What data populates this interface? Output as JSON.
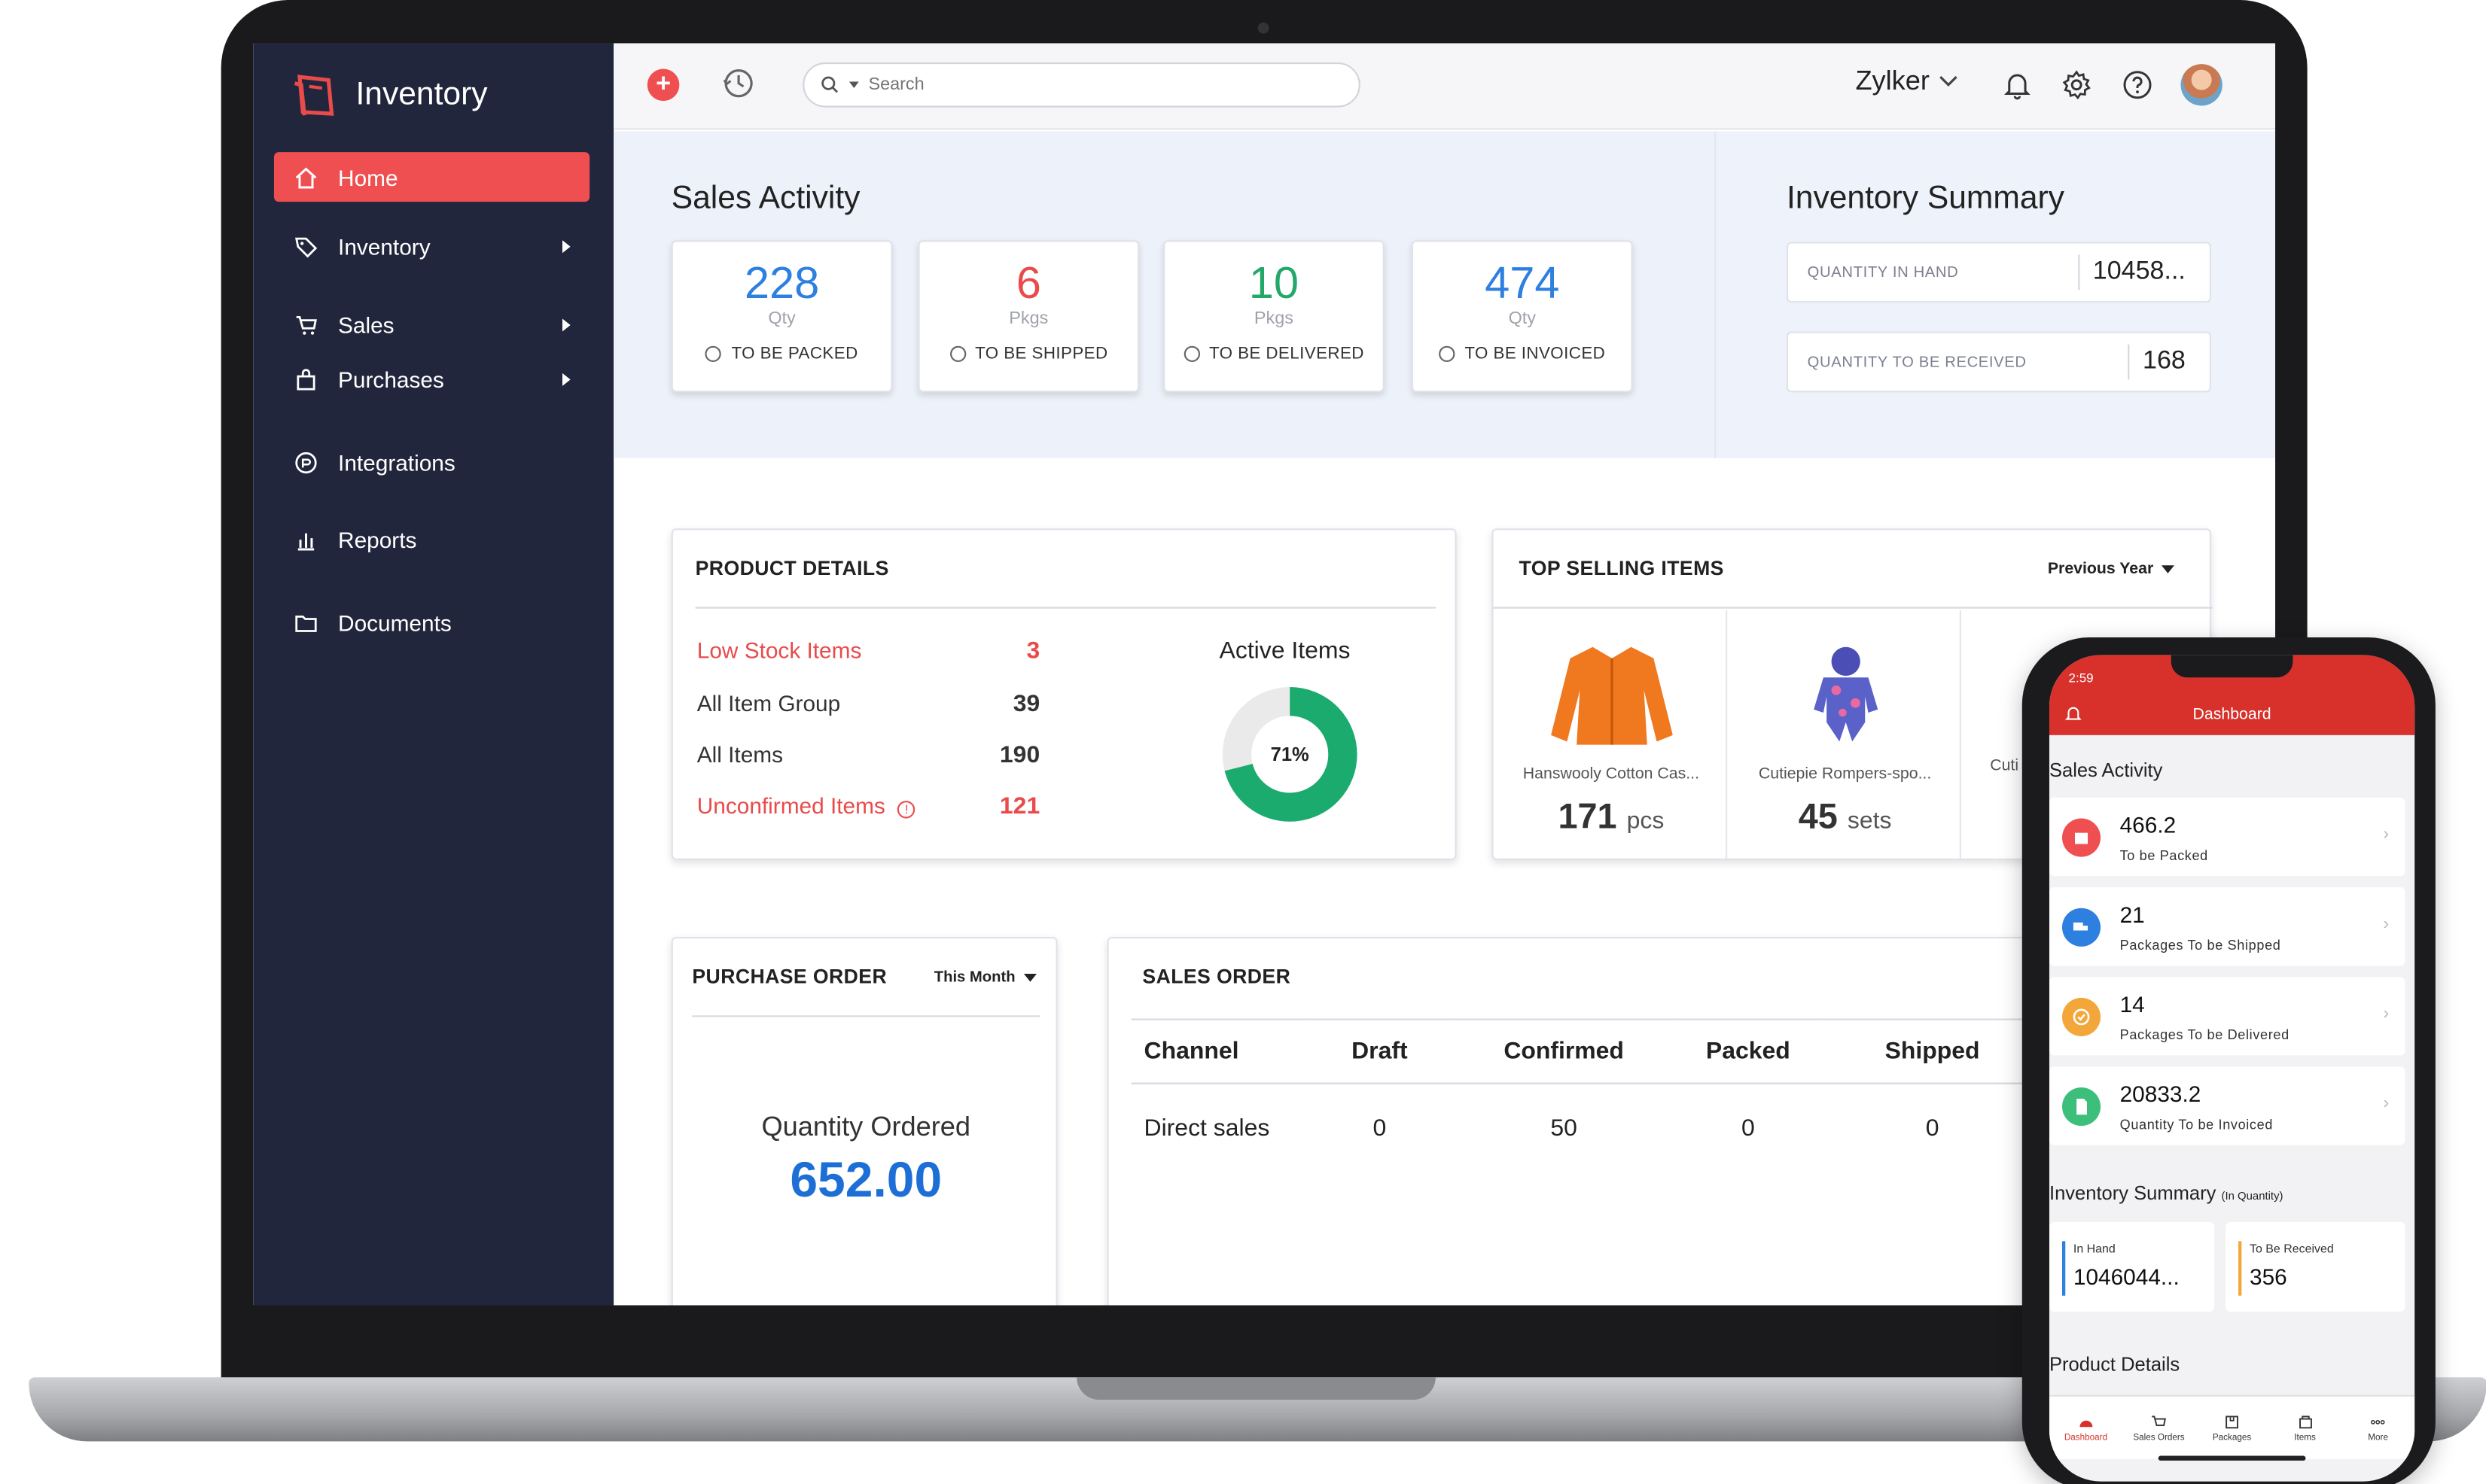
{
  "app": {
    "name": "Inventory",
    "org": "Zylker"
  },
  "search": {
    "placeholder": "Search"
  },
  "sidebar": {
    "items": [
      {
        "label": "Home",
        "active": true
      },
      {
        "label": "Inventory"
      },
      {
        "label": "Sales"
      },
      {
        "label": "Purchases"
      },
      {
        "label": "Integrations"
      },
      {
        "label": "Reports"
      },
      {
        "label": "Documents"
      }
    ]
  },
  "sales_activity": {
    "title": "Sales Activity",
    "cards": [
      {
        "value": "228",
        "unit": "Qty",
        "label": "TO BE PACKED",
        "color": "#2d7fe0"
      },
      {
        "value": "6",
        "unit": "Pkgs",
        "label": "TO BE SHIPPED",
        "color": "#e94b4b"
      },
      {
        "value": "10",
        "unit": "Pkgs",
        "label": "TO BE DELIVERED",
        "color": "#23a86a"
      },
      {
        "value": "474",
        "unit": "Qty",
        "label": "TO BE INVOICED",
        "color": "#2d7fe0"
      }
    ]
  },
  "inventory_summary": {
    "title": "Inventory Summary",
    "rows": [
      {
        "label": "QUANTITY IN HAND",
        "value": "10458..."
      },
      {
        "label": "QUANTITY TO BE RECEIVED",
        "value": "168"
      }
    ]
  },
  "product_details": {
    "title": "PRODUCT DETAILS",
    "rows": [
      {
        "label": "Low Stock Items",
        "value": "3"
      },
      {
        "label": "All Item Group",
        "value": "39"
      },
      {
        "label": "All Items",
        "value": "190"
      },
      {
        "label": "Unconfirmed Items",
        "value": "121"
      }
    ],
    "active_items": {
      "title": "Active Items",
      "percent": 71,
      "label": "71%"
    }
  },
  "top_selling": {
    "title": "TOP SELLING ITEMS",
    "period": "Previous Year",
    "items": [
      {
        "name": "Hanswooly Cotton Cas...",
        "qty": "171",
        "unit": "pcs"
      },
      {
        "name": "Cutiepie Rompers-spo...",
        "qty": "45",
        "unit": "sets"
      },
      {
        "name": "Cuti",
        "qty": "",
        "unit": ""
      }
    ]
  },
  "purchase_order": {
    "title": "PURCHASE ORDER",
    "period": "This Month",
    "label": "Quantity Ordered",
    "value": "652.00"
  },
  "sales_order": {
    "title": "SALES ORDER",
    "columns": [
      "Channel",
      "Draft",
      "Confirmed",
      "Packed",
      "Shipped"
    ],
    "rows": [
      [
        "Direct sales",
        "0",
        "50",
        "0",
        "0"
      ]
    ]
  },
  "phone": {
    "time": "2:59",
    "title": "Dashboard",
    "sales_title": "Sales Activity",
    "cards": [
      {
        "value": "466.2",
        "label": "To be Packed",
        "color": "#ef4f50"
      },
      {
        "value": "21",
        "label": "Packages To be Shipped",
        "color": "#2d7fe0"
      },
      {
        "value": "14",
        "label": "Packages To be Delivered",
        "color": "#f3a73a"
      },
      {
        "value": "20833.2",
        "label": "Quantity To be Invoiced",
        "color": "#3bbf7a"
      }
    ],
    "inv_title": "Inventory Summary",
    "inv_sub": "(In Quantity)",
    "in_hand": {
      "label": "In Hand",
      "value": "1046044..."
    },
    "to_receive": {
      "label": "To Be Received",
      "value": "356"
    },
    "product_title": "Product Details",
    "tabs": [
      "Dashboard",
      "Sales Orders",
      "Packages",
      "Items",
      "More"
    ]
  }
}
